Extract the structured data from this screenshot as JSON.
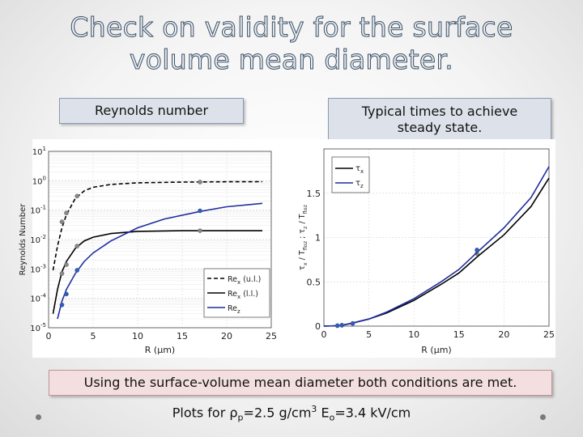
{
  "title_line1": "Check on validity for the surface",
  "title_line2": "volume mean diameter.",
  "left_label": "Reynolds number",
  "right_label_line1": "Typical times to achieve",
  "right_label_line2": "steady state.",
  "result_text": "Using the surface-volume mean diameter both conditions are met.",
  "footnote": {
    "prefix": "Plots for ",
    "rho": "ρ",
    "rho_sub": "p",
    "mid": "=2.5 g/cm",
    "sup": "3",
    "e_text": " E",
    "e_sub": "o",
    "suffix": "=3.4 kV/cm"
  },
  "chart_data": [
    {
      "type": "line",
      "xlabel": "R (μm)",
      "ylabel": "Reynolds Number",
      "xlim": [
        0,
        25
      ],
      "ylim": [
        1e-05,
        10
      ],
      "yscale": "log",
      "grid": true,
      "legend_position": "bottom-right",
      "x_ticks": [
        "0",
        "5",
        "10",
        "15",
        "20",
        "25"
      ],
      "y_ticks": [
        {
          "base": "10",
          "exp": "1",
          "value": 10
        },
        {
          "base": "10",
          "exp": "0",
          "value": 1
        },
        {
          "base": "10",
          "exp": "-1",
          "value": 0.1
        },
        {
          "base": "10",
          "exp": "-2",
          "value": 0.01
        },
        {
          "base": "10",
          "exp": "-3",
          "value": 0.001
        },
        {
          "base": "10",
          "exp": "-4",
          "value": 0.0001
        },
        {
          "base": "10",
          "exp": "-5",
          "value": 1e-05
        }
      ],
      "series": [
        {
          "name": "Re_x (u.l.)",
          "legend_main": "Re",
          "legend_sub": "x",
          "legend_suffix": " (u.l.)",
          "color": "#000000",
          "dash": "5,3",
          "x": [
            0.5,
            1,
            1.5,
            2,
            3,
            4,
            5,
            7,
            10,
            15,
            20,
            24
          ],
          "y": [
            0.0009,
            0.006,
            0.025,
            0.07,
            0.25,
            0.45,
            0.6,
            0.75,
            0.85,
            0.9,
            0.92,
            0.93
          ],
          "markers_x": [
            1.5,
            2,
            3.2,
            17
          ],
          "markers_y": [
            0.04,
            0.08,
            0.3,
            0.9
          ],
          "marker_color": "#888888"
        },
        {
          "name": "Re_x (l.l.)",
          "legend_main": "Re",
          "legend_sub": "x",
          "legend_suffix": " (l.l.)",
          "color": "#000000",
          "dash": "",
          "x": [
            0.5,
            1,
            1.5,
            2,
            3,
            4,
            5,
            7,
            10,
            15,
            20,
            24
          ],
          "y": [
            3e-05,
            0.0002,
            0.0008,
            0.0018,
            0.005,
            0.009,
            0.012,
            0.016,
            0.019,
            0.02,
            0.02,
            0.02
          ],
          "markers_x": [
            1.5,
            2,
            3.2,
            17
          ],
          "markers_y": [
            0.0007,
            0.0014,
            0.006,
            0.02
          ],
          "marker_color": "#888888"
        },
        {
          "name": "Re_z",
          "legend_main": "Re",
          "legend_sub": "z",
          "legend_suffix": "",
          "color": "#1f2d9e",
          "dash": "",
          "x": [
            1,
            1.5,
            2,
            3,
            4,
            5,
            7,
            10,
            13,
            17,
            20,
            24
          ],
          "y": [
            2e-05,
            8e-05,
            0.0002,
            0.0007,
            0.0018,
            0.0035,
            0.009,
            0.025,
            0.05,
            0.09,
            0.13,
            0.17
          ],
          "markers_x": [
            1.5,
            2,
            3.2,
            17
          ],
          "markers_y": [
            6e-05,
            0.00014,
            0.0009,
            0.095
          ],
          "marker_color": "#2a5cc8"
        }
      ]
    },
    {
      "type": "line",
      "xlabel": "R (μm)",
      "ylabel": "τx / Tflo ; τz / Tflo",
      "ylabel_parts": {
        "t1": "τ",
        "s1": "x",
        "t2": " / T",
        "s2": "floz",
        "t3": " ; τ",
        "s3": "z",
        "t4": " / T",
        "s4": "floz"
      },
      "xlim": [
        0,
        25
      ],
      "ylim": [
        0,
        2
      ],
      "grid": true,
      "legend_position": "top-left",
      "x_ticks": [
        "0",
        "5",
        "10",
        "15",
        "20",
        "25"
      ],
      "y_ticks": [
        "0",
        "0.5",
        "1",
        "1.5"
      ],
      "y_tick_values": [
        0,
        0.5,
        1,
        1.5
      ],
      "series": [
        {
          "name": "τx",
          "legend_main": "τ",
          "legend_sub": "x",
          "color": "#000000",
          "x": [
            0,
            1.5,
            2,
            3,
            5,
            7,
            10,
            13,
            15,
            17,
            20,
            23,
            25
          ],
          "y": [
            0,
            0.005,
            0.01,
            0.03,
            0.08,
            0.15,
            0.29,
            0.47,
            0.6,
            0.78,
            1.03,
            1.35,
            1.67
          ],
          "markers_x": [
            1.5,
            2,
            3.2,
            17
          ],
          "markers_y": [
            0.005,
            0.01,
            0.03,
            0.82
          ],
          "marker_color": "#888888"
        },
        {
          "name": "τz",
          "legend_main": "τ",
          "legend_sub": "z",
          "color": "#1f2d9e",
          "x": [
            0,
            1.5,
            2,
            3,
            5,
            7,
            10,
            13,
            15,
            17,
            20,
            23,
            25
          ],
          "y": [
            0,
            0.005,
            0.01,
            0.03,
            0.08,
            0.16,
            0.31,
            0.5,
            0.64,
            0.83,
            1.11,
            1.45,
            1.8
          ],
          "markers_x": [
            1.5,
            2,
            3.2,
            17
          ],
          "markers_y": [
            0.005,
            0.01,
            0.03,
            0.86
          ],
          "marker_color": "#2a5cc8"
        }
      ]
    }
  ]
}
